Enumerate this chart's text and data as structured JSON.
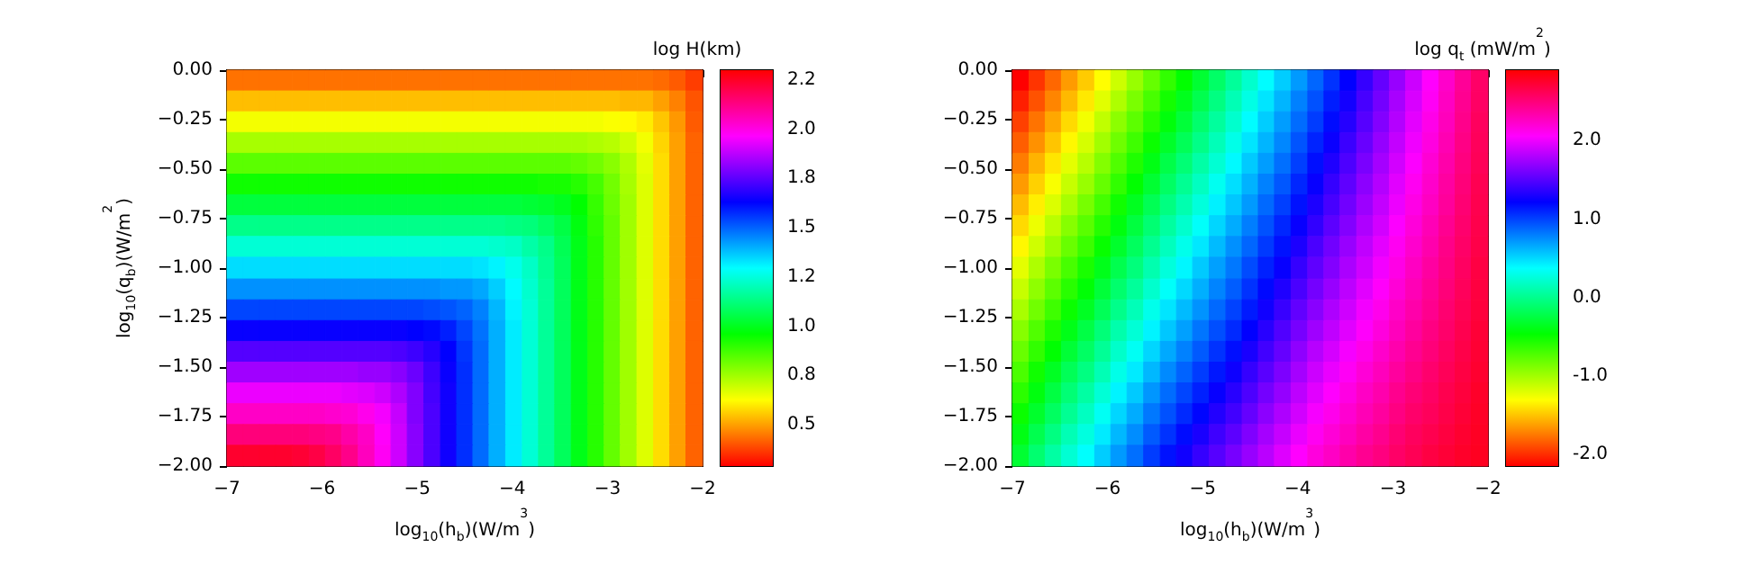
{
  "chart_data": [
    {
      "type": "heatmap",
      "xlabel": "log$_{10}$(h$_{b}$)(W/m$^{3}$)",
      "ylabel": "log$_{10}$(q$_{b}$)(W/m$^{2}$)",
      "clabel": "log H(km)",
      "x": [
        -6.91,
        -6.74,
        -6.57,
        -6.4,
        -6.22,
        -6.05,
        -5.88,
        -5.71,
        -5.53,
        -5.36,
        -5.19,
        -5.02,
        -4.84,
        -4.67,
        -4.5,
        -4.33,
        -4.16,
        -3.98,
        -3.81,
        -3.64,
        -3.47,
        -3.29,
        -3.12,
        -2.95,
        -2.78,
        -2.6,
        -2.43,
        -2.26,
        -2.09
      ],
      "y": [
        -0.05,
        -0.16,
        -0.26,
        -0.37,
        -0.47,
        -0.58,
        -0.68,
        -0.79,
        -0.89,
        -1.0,
        -1.11,
        -1.21,
        -1.32,
        -1.42,
        -1.53,
        -1.63,
        -1.74,
        -1.84,
        -1.95
      ],
      "xlim": [
        -7,
        -2
      ],
      "ylim": [
        -2,
        0
      ],
      "xticks": [
        {
          "value": -7,
          "label": "−7"
        },
        {
          "value": -6,
          "label": "−6"
        },
        {
          "value": -5,
          "label": "−5"
        },
        {
          "value": -4,
          "label": "−4"
        },
        {
          "value": -3,
          "label": "−3"
        },
        {
          "value": -2,
          "label": "−2"
        }
      ],
      "yticks": [
        {
          "value": -2,
          "label": "−2.00"
        },
        {
          "value": -1.75,
          "label": "−1.75"
        },
        {
          "value": -1.5,
          "label": "−1.50"
        },
        {
          "value": -1.25,
          "label": "−1.25"
        },
        {
          "value": -1,
          "label": "−1.00"
        },
        {
          "value": -0.75,
          "label": "−0.75"
        },
        {
          "value": -0.5,
          "label": "−0.50"
        },
        {
          "value": -0.25,
          "label": "−0.25"
        },
        {
          "value": 0,
          "label": "0.00"
        }
      ],
      "clim": [
        0.29,
        2.3
      ],
      "cticks": [
        {
          "value": 0.5,
          "label": "0.5"
        },
        {
          "value": 0.75,
          "label": "0.8"
        },
        {
          "value": 1.0,
          "label": "1.0"
        },
        {
          "value": 1.25,
          "label": "1.2"
        },
        {
          "value": 1.5,
          "label": "1.5"
        },
        {
          "value": 1.75,
          "label": "1.8"
        },
        {
          "value": 2.0,
          "label": "2.0"
        },
        {
          "value": 2.25,
          "label": "2.2"
        }
      ],
      "cells": [
        [
          0.44,
          0.44,
          0.44,
          0.44,
          0.44,
          0.44,
          0.44,
          0.44,
          0.44,
          0.44,
          0.44,
          0.44,
          0.44,
          0.44,
          0.44,
          0.44,
          0.44,
          0.44,
          0.44,
          0.44,
          0.44,
          0.44,
          0.44,
          0.44,
          0.44,
          0.44,
          0.43,
          0.41,
          0.37
        ],
        [
          0.54,
          0.54,
          0.54,
          0.54,
          0.54,
          0.54,
          0.54,
          0.54,
          0.54,
          0.54,
          0.54,
          0.54,
          0.54,
          0.54,
          0.54,
          0.54,
          0.54,
          0.54,
          0.54,
          0.54,
          0.54,
          0.54,
          0.54,
          0.54,
          0.53,
          0.53,
          0.5,
          0.46,
          0.4
        ],
        [
          0.64,
          0.64,
          0.64,
          0.64,
          0.64,
          0.64,
          0.64,
          0.64,
          0.64,
          0.64,
          0.64,
          0.64,
          0.64,
          0.64,
          0.64,
          0.64,
          0.64,
          0.64,
          0.64,
          0.64,
          0.64,
          0.64,
          0.64,
          0.63,
          0.62,
          0.6,
          0.55,
          0.49,
          0.41
        ],
        [
          0.74,
          0.74,
          0.74,
          0.74,
          0.74,
          0.74,
          0.74,
          0.74,
          0.74,
          0.74,
          0.74,
          0.74,
          0.74,
          0.74,
          0.74,
          0.74,
          0.74,
          0.74,
          0.74,
          0.74,
          0.74,
          0.74,
          0.73,
          0.72,
          0.69,
          0.64,
          0.57,
          0.5,
          0.42
        ],
        [
          0.84,
          0.84,
          0.84,
          0.84,
          0.84,
          0.84,
          0.84,
          0.84,
          0.84,
          0.84,
          0.84,
          0.84,
          0.84,
          0.84,
          0.84,
          0.84,
          0.84,
          0.84,
          0.84,
          0.84,
          0.84,
          0.83,
          0.81,
          0.78,
          0.73,
          0.66,
          0.58,
          0.5,
          0.42
        ],
        [
          0.94,
          0.94,
          0.94,
          0.94,
          0.94,
          0.94,
          0.94,
          0.94,
          0.94,
          0.94,
          0.94,
          0.94,
          0.94,
          0.94,
          0.94,
          0.94,
          0.94,
          0.94,
          0.94,
          0.93,
          0.93,
          0.91,
          0.87,
          0.81,
          0.74,
          0.67,
          0.58,
          0.5,
          0.42
        ],
        [
          1.04,
          1.04,
          1.04,
          1.04,
          1.04,
          1.04,
          1.04,
          1.04,
          1.04,
          1.04,
          1.04,
          1.04,
          1.04,
          1.04,
          1.04,
          1.04,
          1.04,
          1.04,
          1.03,
          1.02,
          1.0,
          0.96,
          0.89,
          0.82,
          0.75,
          0.67,
          0.58,
          0.5,
          0.42
        ],
        [
          1.14,
          1.14,
          1.14,
          1.14,
          1.14,
          1.14,
          1.14,
          1.14,
          1.14,
          1.14,
          1.14,
          1.14,
          1.14,
          1.14,
          1.14,
          1.14,
          1.14,
          1.13,
          1.12,
          1.09,
          1.05,
          0.98,
          0.9,
          0.83,
          0.75,
          0.67,
          0.58,
          0.5,
          0.42
        ],
        [
          1.24,
          1.24,
          1.24,
          1.24,
          1.24,
          1.24,
          1.24,
          1.24,
          1.24,
          1.24,
          1.24,
          1.24,
          1.24,
          1.24,
          1.24,
          1.24,
          1.23,
          1.22,
          1.18,
          1.14,
          1.07,
          0.99,
          0.91,
          0.83,
          0.75,
          0.67,
          0.58,
          0.5,
          0.42
        ],
        [
          1.34,
          1.34,
          1.34,
          1.34,
          1.34,
          1.34,
          1.34,
          1.34,
          1.34,
          1.34,
          1.34,
          1.34,
          1.34,
          1.34,
          1.34,
          1.33,
          1.31,
          1.27,
          1.22,
          1.15,
          1.08,
          0.99,
          0.91,
          0.83,
          0.75,
          0.67,
          0.58,
          0.5,
          0.42
        ],
        [
          1.44,
          1.44,
          1.44,
          1.44,
          1.44,
          1.44,
          1.44,
          1.44,
          1.44,
          1.44,
          1.44,
          1.44,
          1.44,
          1.43,
          1.43,
          1.41,
          1.36,
          1.3,
          1.23,
          1.16,
          1.08,
          0.99,
          0.91,
          0.83,
          0.75,
          0.67,
          0.58,
          0.5,
          0.42
        ],
        [
          1.54,
          1.54,
          1.54,
          1.54,
          1.54,
          1.54,
          1.54,
          1.54,
          1.54,
          1.54,
          1.54,
          1.54,
          1.53,
          1.52,
          1.5,
          1.46,
          1.39,
          1.31,
          1.24,
          1.16,
          1.08,
          0.99,
          0.91,
          0.83,
          0.75,
          0.67,
          0.58,
          0.5,
          0.42
        ],
        [
          1.64,
          1.64,
          1.64,
          1.64,
          1.64,
          1.64,
          1.64,
          1.64,
          1.64,
          1.64,
          1.64,
          1.63,
          1.62,
          1.59,
          1.54,
          1.48,
          1.4,
          1.32,
          1.24,
          1.16,
          1.08,
          0.99,
          0.91,
          0.83,
          0.75,
          0.67,
          0.58,
          0.5,
          0.42
        ],
        [
          1.74,
          1.74,
          1.74,
          1.74,
          1.74,
          1.74,
          1.74,
          1.74,
          1.74,
          1.74,
          1.73,
          1.71,
          1.68,
          1.63,
          1.56,
          1.49,
          1.4,
          1.32,
          1.24,
          1.16,
          1.08,
          0.99,
          0.91,
          0.83,
          0.75,
          0.67,
          0.58,
          0.5,
          0.42
        ],
        [
          1.84,
          1.84,
          1.84,
          1.84,
          1.84,
          1.84,
          1.84,
          1.84,
          1.83,
          1.83,
          1.81,
          1.77,
          1.71,
          1.64,
          1.57,
          1.49,
          1.4,
          1.32,
          1.24,
          1.16,
          1.08,
          0.99,
          0.91,
          0.83,
          0.75,
          0.67,
          0.58,
          0.5,
          0.42
        ],
        [
          1.94,
          1.94,
          1.94,
          1.94,
          1.94,
          1.94,
          1.94,
          1.93,
          1.92,
          1.9,
          1.86,
          1.8,
          1.72,
          1.65,
          1.57,
          1.49,
          1.4,
          1.32,
          1.24,
          1.16,
          1.08,
          0.99,
          0.91,
          0.83,
          0.75,
          0.67,
          0.58,
          0.5,
          0.42
        ],
        [
          2.04,
          2.04,
          2.04,
          2.04,
          2.04,
          2.04,
          2.03,
          2.02,
          1.99,
          1.95,
          1.89,
          1.8,
          1.73,
          1.65,
          1.57,
          1.49,
          1.4,
          1.32,
          1.24,
          1.16,
          1.08,
          0.99,
          0.91,
          0.83,
          0.75,
          0.67,
          0.58,
          0.5,
          0.42
        ],
        [
          2.14,
          2.14,
          2.14,
          2.14,
          2.14,
          2.13,
          2.12,
          2.08,
          2.04,
          1.97,
          1.9,
          1.81,
          1.73,
          1.65,
          1.57,
          1.49,
          1.4,
          1.32,
          1.24,
          1.16,
          1.08,
          0.99,
          0.91,
          0.83,
          0.75,
          0.67,
          0.58,
          0.5,
          0.42
        ],
        [
          2.24,
          2.24,
          2.24,
          2.24,
          2.23,
          2.21,
          2.17,
          2.12,
          2.05,
          1.98,
          1.9,
          1.81,
          1.73,
          1.65,
          1.57,
          1.49,
          1.4,
          1.32,
          1.24,
          1.16,
          1.08,
          0.99,
          0.91,
          0.83,
          0.75,
          0.67,
          0.58,
          0.5,
          0.42
        ]
      ]
    },
    {
      "type": "heatmap",
      "xlabel": "log$_{10}$(h$_{b}$)(W/m$^{3}$)",
      "clabel": "log q$_{t}$ (mW/m$^{2}$)",
      "x": [
        -6.91,
        -6.74,
        -6.57,
        -6.4,
        -6.22,
        -6.05,
        -5.88,
        -5.71,
        -5.53,
        -5.36,
        -5.19,
        -5.02,
        -4.84,
        -4.67,
        -4.5,
        -4.33,
        -4.16,
        -3.98,
        -3.81,
        -3.64,
        -3.47,
        -3.29,
        -3.12,
        -2.95,
        -2.78,
        -2.6,
        -2.43,
        -2.26,
        -2.09
      ],
      "y": [
        -0.05,
        -0.16,
        -0.26,
        -0.37,
        -0.47,
        -0.58,
        -0.68,
        -0.79,
        -0.89,
        -1.0,
        -1.11,
        -1.21,
        -1.32,
        -1.42,
        -1.53,
        -1.63,
        -1.74,
        -1.84,
        -1.95
      ],
      "xlim": [
        -7,
        -2
      ],
      "ylim": [
        -2,
        0
      ],
      "xticks": [
        {
          "value": -7,
          "label": "−7"
        },
        {
          "value": -6,
          "label": "−6"
        },
        {
          "value": -5,
          "label": "−5"
        },
        {
          "value": -4,
          "label": "−4"
        },
        {
          "value": -3,
          "label": "−3"
        },
        {
          "value": -2,
          "label": "−2"
        }
      ],
      "yticks": [
        {
          "value": -2,
          "label": "−2.00"
        },
        {
          "value": -1.75,
          "label": "−1.75"
        },
        {
          "value": -1.5,
          "label": "−1.50"
        },
        {
          "value": -1.25,
          "label": "−1.25"
        },
        {
          "value": -1,
          "label": "−1.00"
        },
        {
          "value": -0.75,
          "label": "−0.75"
        },
        {
          "value": -0.5,
          "label": "−0.50"
        },
        {
          "value": -0.25,
          "label": "−0.25"
        },
        {
          "value": 0,
          "label": "0.00"
        }
      ],
      "clim": [
        -2.15,
        2.9
      ],
      "cticks": [
        {
          "value": -2,
          "label": "-2.0"
        },
        {
          "value": -1,
          "label": "-1.0"
        },
        {
          "value": 0,
          "label": "0.0"
        },
        {
          "value": 1,
          "label": "1.0"
        },
        {
          "value": 2,
          "label": "2.0"
        }
      ],
      "cells": [
        [
          -2.15,
          -1.98,
          -1.81,
          -1.64,
          -1.48,
          -1.31,
          -1.14,
          -0.97,
          -0.8,
          -0.63,
          -0.47,
          -0.3,
          -0.13,
          0.04,
          0.21,
          0.38,
          0.54,
          0.71,
          0.88,
          1.05,
          1.22,
          1.39,
          1.55,
          1.72,
          1.89,
          2.06,
          2.23,
          2.4,
          2.56
        ],
        [
          -2.05,
          -1.88,
          -1.71,
          -1.54,
          -1.38,
          -1.21,
          -1.04,
          -0.87,
          -0.7,
          -0.53,
          -0.37,
          -0.21,
          -0.04,
          0.13,
          0.29,
          0.46,
          0.62,
          0.79,
          0.95,
          1.12,
          1.28,
          1.45,
          1.6,
          1.77,
          1.93,
          2.09,
          2.26,
          2.42,
          2.57
        ],
        [
          -1.94,
          -1.77,
          -1.6,
          -1.43,
          -1.27,
          -1.1,
          -0.93,
          -0.77,
          -0.6,
          -0.43,
          -0.28,
          -0.11,
          0.05,
          0.21,
          0.38,
          0.54,
          0.7,
          0.86,
          1.02,
          1.18,
          1.34,
          1.5,
          1.65,
          1.81,
          1.97,
          2.13,
          2.28,
          2.44,
          2.59
        ],
        [
          -1.84,
          -1.67,
          -1.5,
          -1.33,
          -1.17,
          -1.0,
          -0.83,
          -0.67,
          -0.5,
          -0.33,
          -0.18,
          -0.02,
          0.14,
          0.3,
          0.46,
          0.62,
          0.77,
          0.94,
          1.1,
          1.25,
          1.41,
          1.56,
          1.71,
          1.86,
          2.01,
          2.16,
          2.31,
          2.46,
          2.6
        ],
        [
          -1.74,
          -1.56,
          -1.39,
          -1.22,
          -1.07,
          -0.9,
          -0.73,
          -0.57,
          -0.4,
          -0.23,
          -0.08,
          0.08,
          0.23,
          0.39,
          0.55,
          0.7,
          0.85,
          1.01,
          1.17,
          1.32,
          1.47,
          1.62,
          1.76,
          1.91,
          2.05,
          2.2,
          2.34,
          2.48,
          2.61
        ],
        [
          -1.64,
          -1.46,
          -1.29,
          -1.12,
          -0.97,
          -0.8,
          -0.63,
          -0.47,
          -0.3,
          -0.14,
          0.02,
          0.17,
          0.33,
          0.48,
          0.63,
          0.79,
          0.93,
          1.09,
          1.24,
          1.39,
          1.53,
          1.68,
          1.81,
          1.96,
          2.1,
          2.23,
          2.37,
          2.5,
          2.63
        ],
        [
          -1.53,
          -1.36,
          -1.19,
          -1.02,
          -0.86,
          -0.69,
          -0.52,
          -0.36,
          -0.19,
          -0.04,
          0.11,
          0.26,
          0.42,
          0.56,
          0.71,
          0.87,
          1.01,
          1.16,
          1.31,
          1.45,
          1.59,
          1.73,
          1.86,
          2.0,
          2.14,
          2.26,
          2.39,
          2.52,
          2.64
        ],
        [
          -1.43,
          -1.25,
          -1.08,
          -0.91,
          -0.76,
          -0.59,
          -0.42,
          -0.26,
          -0.09,
          0.06,
          0.21,
          0.36,
          0.51,
          0.65,
          0.8,
          0.95,
          1.09,
          1.24,
          1.38,
          1.52,
          1.65,
          1.79,
          1.91,
          2.05,
          2.18,
          2.3,
          2.42,
          2.54,
          2.65
        ],
        [
          -1.33,
          -1.15,
          -0.98,
          -0.81,
          -0.66,
          -0.49,
          -0.32,
          -0.16,
          0.01,
          0.16,
          0.31,
          0.45,
          0.6,
          0.74,
          0.88,
          1.03,
          1.16,
          1.31,
          1.46,
          1.59,
          1.72,
          1.85,
          1.97,
          2.1,
          2.22,
          2.33,
          2.45,
          2.56,
          2.66
        ],
        [
          -1.22,
          -1.04,
          -0.87,
          -0.7,
          -0.55,
          -0.38,
          -0.21,
          -0.06,
          0.11,
          0.26,
          0.4,
          0.55,
          0.69,
          0.82,
          0.97,
          1.11,
          1.24,
          1.39,
          1.53,
          1.65,
          1.78,
          1.9,
          2.02,
          2.14,
          2.26,
          2.37,
          2.47,
          2.58,
          2.68
        ],
        [
          -1.12,
          -0.94,
          -0.77,
          -0.6,
          -0.45,
          -0.28,
          -0.11,
          0.04,
          0.21,
          0.36,
          0.5,
          0.64,
          0.78,
          0.91,
          1.05,
          1.19,
          1.32,
          1.46,
          1.6,
          1.72,
          1.84,
          1.96,
          2.07,
          2.19,
          2.3,
          2.4,
          2.5,
          2.6,
          2.69
        ],
        [
          -1.02,
          -0.84,
          -0.67,
          -0.5,
          -0.35,
          -0.18,
          -0.01,
          0.14,
          0.31,
          0.46,
          0.6,
          0.73,
          0.87,
          1.0,
          1.13,
          1.27,
          1.4,
          1.54,
          1.67,
          1.79,
          1.9,
          2.02,
          2.12,
          2.24,
          2.34,
          2.43,
          2.53,
          2.62,
          2.7
        ],
        [
          -0.91,
          -0.73,
          -0.56,
          -0.39,
          -0.24,
          -0.07,
          0.1,
          0.24,
          0.41,
          0.56,
          0.69,
          0.83,
          0.96,
          1.08,
          1.22,
          1.35,
          1.48,
          1.61,
          1.74,
          1.85,
          1.96,
          2.07,
          2.17,
          2.28,
          2.38,
          2.47,
          2.55,
          2.64,
          2.72
        ],
        [
          -0.81,
          -0.63,
          -0.46,
          -0.29,
          -0.14,
          0.03,
          0.2,
          0.34,
          0.51,
          0.66,
          0.79,
          0.92,
          1.05,
          1.17,
          1.3,
          1.43,
          1.55,
          1.69,
          1.82,
          1.92,
          2.03,
          2.13,
          2.23,
          2.33,
          2.42,
          2.5,
          2.58,
          2.66,
          2.73
        ],
        [
          -0.71,
          -0.52,
          -0.35,
          -0.18,
          -0.04,
          0.13,
          0.3,
          0.44,
          0.61,
          0.76,
          0.89,
          1.02,
          1.14,
          1.26,
          1.39,
          1.51,
          1.63,
          1.76,
          1.89,
          1.99,
          2.09,
          2.19,
          2.28,
          2.38,
          2.46,
          2.54,
          2.61,
          2.68,
          2.74
        ],
        [
          -0.61,
          -0.42,
          -0.25,
          -0.08,
          0.07,
          0.24,
          0.41,
          0.55,
          0.72,
          0.86,
          0.99,
          1.11,
          1.24,
          1.35,
          1.47,
          1.6,
          1.71,
          1.84,
          1.96,
          2.06,
          2.15,
          2.25,
          2.33,
          2.43,
          2.51,
          2.57,
          2.64,
          2.7,
          2.76
        ],
        [
          -0.5,
          -0.32,
          -0.15,
          0.02,
          0.17,
          0.34,
          0.51,
          0.65,
          0.82,
          0.95,
          1.08,
          1.2,
          1.33,
          1.43,
          1.55,
          1.68,
          1.79,
          1.91,
          2.03,
          2.12,
          2.21,
          2.3,
          2.38,
          2.47,
          2.55,
          2.6,
          2.66,
          2.72,
          2.77
        ],
        [
          -0.4,
          -0.21,
          -0.04,
          0.13,
          0.27,
          0.44,
          0.61,
          0.75,
          0.92,
          1.05,
          1.18,
          1.3,
          1.42,
          1.52,
          1.64,
          1.76,
          1.87,
          1.99,
          2.1,
          2.19,
          2.27,
          2.36,
          2.43,
          2.52,
          2.59,
          2.64,
          2.69,
          2.74,
          2.78
        ],
        [
          -0.3,
          -0.1,
          0.07,
          0.23,
          0.37,
          0.54,
          0.71,
          0.85,
          1.02,
          1.16,
          1.27,
          1.39,
          1.5,
          1.61,
          1.72,
          1.83,
          1.95,
          2.06,
          2.17,
          2.25,
          2.34,
          2.42,
          2.48,
          2.56,
          2.62,
          2.68,
          2.72,
          2.76,
          2.79
        ]
      ]
    }
  ]
}
